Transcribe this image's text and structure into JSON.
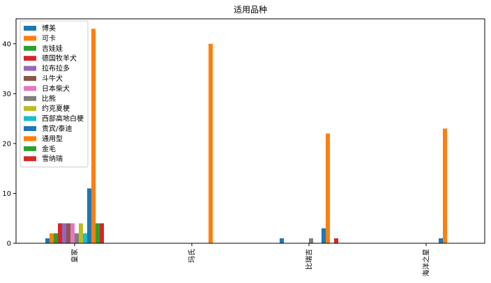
{
  "chart_data": {
    "type": "bar",
    "title": "适用品种",
    "xlabel": "",
    "ylabel": "",
    "ylim": [
      0,
      45
    ],
    "yticks": [
      0,
      10,
      20,
      30,
      40
    ],
    "grid": false,
    "legend_position": "top-left",
    "categories": [
      "皇家",
      "玛氏",
      "比瑞吉",
      "海洋之星"
    ],
    "series": [
      {
        "name": "博美",
        "color": "#1f77b4",
        "values": [
          1,
          0,
          1,
          0
        ]
      },
      {
        "name": "可卡",
        "color": "#ff7f0e",
        "values": [
          2,
          0,
          0,
          0
        ]
      },
      {
        "name": "吉娃娃",
        "color": "#2ca02c",
        "values": [
          2,
          0,
          0,
          0
        ]
      },
      {
        "name": "德国牧羊犬",
        "color": "#d62728",
        "values": [
          4,
          0,
          0,
          0
        ]
      },
      {
        "name": "拉布拉多",
        "color": "#9467bd",
        "values": [
          4,
          0,
          0,
          0
        ]
      },
      {
        "name": "斗牛犬",
        "color": "#8c564b",
        "values": [
          4,
          0,
          0,
          0
        ]
      },
      {
        "name": "日本柴犬",
        "color": "#e377c2",
        "values": [
          4,
          0,
          0,
          0
        ]
      },
      {
        "name": "比熊",
        "color": "#7f7f7f",
        "values": [
          2,
          0,
          1,
          0
        ]
      },
      {
        "name": "约克夏梗",
        "color": "#bcbd22",
        "values": [
          4,
          0,
          0,
          0
        ]
      },
      {
        "name": "西部高地白梗",
        "color": "#17becf",
        "values": [
          2,
          0,
          0,
          0
        ]
      },
      {
        "name": "贵宾/泰迪",
        "color": "#1f77b4",
        "values": [
          11,
          0,
          3,
          1
        ]
      },
      {
        "name": "通用型",
        "color": "#ff7f0e",
        "values": [
          43,
          40,
          22,
          23
        ]
      },
      {
        "name": "金毛",
        "color": "#2ca02c",
        "values": [
          4,
          0,
          0,
          0
        ]
      },
      {
        "name": "雪纳瑞",
        "color": "#d62728",
        "values": [
          4,
          0,
          1,
          0
        ]
      }
    ]
  }
}
